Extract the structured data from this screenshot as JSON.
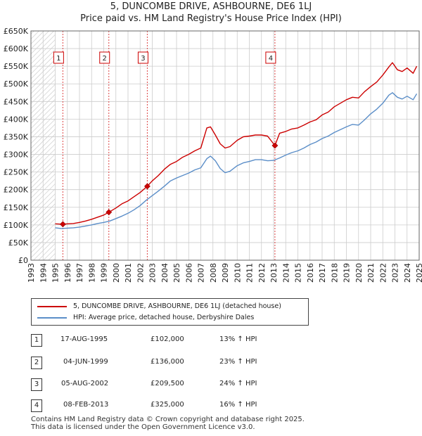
{
  "title": "5, DUNCOMBE DRIVE, ASHBOURNE, DE6 1LJ",
  "subtitle": "Price paid vs. HM Land Registry's House Price Index (HPI)",
  "colors": {
    "property": "#cc0000",
    "hpi": "#5b8ec8",
    "sale_line": "#dd4444",
    "grid": "#cccccc",
    "hatch": "#bbbbbb"
  },
  "chart_data": {
    "type": "line",
    "title": "5, DUNCOMBE DRIVE, ASHBOURNE, DE6 1LJ",
    "subtitle": "Price paid vs. HM Land Registry's House Price Index (HPI)",
    "xlabel": "",
    "ylabel": "",
    "xlim": [
      1993,
      2025
    ],
    "ylim": [
      0,
      650000
    ],
    "grid": true,
    "legend_position": "below",
    "y_ticks": [
      {
        "value": 0,
        "label": "£0"
      },
      {
        "value": 50000,
        "label": "£50K"
      },
      {
        "value": 100000,
        "label": "£100K"
      },
      {
        "value": 150000,
        "label": "£150K"
      },
      {
        "value": 200000,
        "label": "£200K"
      },
      {
        "value": 250000,
        "label": "£250K"
      },
      {
        "value": 300000,
        "label": "£300K"
      },
      {
        "value": 350000,
        "label": "£350K"
      },
      {
        "value": 400000,
        "label": "£400K"
      },
      {
        "value": 450000,
        "label": "£450K"
      },
      {
        "value": 500000,
        "label": "£500K"
      },
      {
        "value": 550000,
        "label": "£550K"
      },
      {
        "value": 600000,
        "label": "£600K"
      },
      {
        "value": 650000,
        "label": "£650K"
      }
    ],
    "x_ticks": [
      "1993",
      "1994",
      "1995",
      "1996",
      "1997",
      "1998",
      "1999",
      "2000",
      "2001",
      "2002",
      "2003",
      "2004",
      "2005",
      "2006",
      "2007",
      "2008",
      "2009",
      "2010",
      "2011",
      "2012",
      "2013",
      "2014",
      "2015",
      "2016",
      "2017",
      "2018",
      "2019",
      "2020",
      "2021",
      "2022",
      "2023",
      "2024",
      "2025"
    ],
    "hatched_ranges": [
      [
        1993,
        1995.0
      ],
      [
        2025.0,
        2025.0
      ]
    ],
    "series": [
      {
        "name": "5, DUNCOMBE DRIVE, ASHBOURNE, DE6 1LJ (detached house)",
        "x": [
          1995.0,
          1995.63,
          1996.0,
          1996.5,
          1997.0,
          1997.5,
          1998.0,
          1998.5,
          1999.0,
          1999.42,
          2000.0,
          2000.5,
          2001.0,
          2001.5,
          2002.0,
          2002.59,
          2003.0,
          2003.5,
          2004.0,
          2004.5,
          2005.0,
          2005.5,
          2006.0,
          2006.5,
          2007.0,
          2007.5,
          2007.8,
          2008.2,
          2008.6,
          2009.0,
          2009.4,
          2010.0,
          2010.5,
          2011.0,
          2011.5,
          2012.0,
          2012.5,
          2013.11,
          2013.5,
          2014.0,
          2014.5,
          2015.0,
          2015.5,
          2016.0,
          2016.5,
          2017.0,
          2017.5,
          2018.0,
          2018.5,
          2019.0,
          2019.5,
          2020.0,
          2020.5,
          2021.0,
          2021.5,
          2022.0,
          2022.5,
          2022.8,
          2023.2,
          2023.6,
          2024.0,
          2024.5,
          2024.8
        ],
        "values": [
          103000,
          102000,
          103000,
          104000,
          107000,
          111000,
          116000,
          122000,
          128000,
          136000,
          148000,
          160000,
          168000,
          180000,
          192000,
          209500,
          225000,
          240000,
          258000,
          272000,
          280000,
          292000,
          300000,
          310000,
          318000,
          375000,
          378000,
          355000,
          330000,
          318000,
          322000,
          340000,
          350000,
          352000,
          355000,
          355000,
          352000,
          325000,
          360000,
          365000,
          372000,
          375000,
          383000,
          392000,
          398000,
          412000,
          420000,
          435000,
          445000,
          455000,
          462000,
          460000,
          478000,
          492000,
          505000,
          525000,
          548000,
          560000,
          540000,
          535000,
          545000,
          530000,
          550000
        ]
      },
      {
        "name": "HPI: Average price, detached house, Derbyshire Dales",
        "x": [
          1995.0,
          1995.5,
          1996.0,
          1996.5,
          1997.0,
          1997.5,
          1998.0,
          1998.5,
          1999.0,
          1999.5,
          2000.0,
          2000.5,
          2001.0,
          2001.5,
          2002.0,
          2002.5,
          2003.0,
          2003.5,
          2004.0,
          2004.5,
          2005.0,
          2005.5,
          2006.0,
          2006.5,
          2007.0,
          2007.5,
          2007.8,
          2008.2,
          2008.6,
          2009.0,
          2009.4,
          2010.0,
          2010.5,
          2011.0,
          2011.5,
          2012.0,
          2012.5,
          2013.0,
          2013.5,
          2014.0,
          2014.5,
          2015.0,
          2015.5,
          2016.0,
          2016.5,
          2017.0,
          2017.5,
          2018.0,
          2018.5,
          2019.0,
          2019.5,
          2020.0,
          2020.5,
          2021.0,
          2021.5,
          2022.0,
          2022.5,
          2022.8,
          2023.2,
          2023.6,
          2024.0,
          2024.5,
          2024.8
        ],
        "values": [
          92000,
          90000,
          91000,
          92000,
          94000,
          97000,
          100000,
          104000,
          107000,
          111000,
          118000,
          125000,
          133000,
          143000,
          155000,
          170000,
          183000,
          196000,
          210000,
          225000,
          233000,
          240000,
          247000,
          256000,
          262000,
          288000,
          295000,
          282000,
          260000,
          248000,
          252000,
          268000,
          276000,
          280000,
          285000,
          285000,
          282000,
          283000,
          290000,
          298000,
          305000,
          310000,
          318000,
          328000,
          335000,
          345000,
          352000,
          362000,
          370000,
          378000,
          385000,
          383000,
          398000,
          415000,
          428000,
          445000,
          468000,
          475000,
          462000,
          457000,
          465000,
          455000,
          472000
        ]
      }
    ],
    "sales": [
      {
        "id": "1",
        "x": 1995.63,
        "value": 102000
      },
      {
        "id": "2",
        "x": 1999.42,
        "value": 136000
      },
      {
        "id": "3",
        "x": 2002.59,
        "value": 209500
      },
      {
        "id": "4",
        "x": 2013.11,
        "value": 325000
      }
    ]
  },
  "legend": {
    "property_label": "5, DUNCOMBE DRIVE, ASHBOURNE, DE6 1LJ (detached house)",
    "hpi_label": "HPI: Average price, detached house, Derbyshire Dales"
  },
  "sales_table": [
    {
      "num": "1",
      "date": "17-AUG-1995",
      "price": "£102,000",
      "hpi": "13% ↑ HPI"
    },
    {
      "num": "2",
      "date": "04-JUN-1999",
      "price": "£136,000",
      "hpi": "23% ↑ HPI"
    },
    {
      "num": "3",
      "date": "05-AUG-2002",
      "price": "£209,500",
      "hpi": "24% ↑ HPI"
    },
    {
      "num": "4",
      "date": "08-FEB-2013",
      "price": "£325,000",
      "hpi": "16% ↑ HPI"
    }
  ],
  "footer": {
    "line1": "Contains HM Land Registry data © Crown copyright and database right 2025.",
    "line2": "This data is licensed under the Open Government Licence v3.0."
  }
}
